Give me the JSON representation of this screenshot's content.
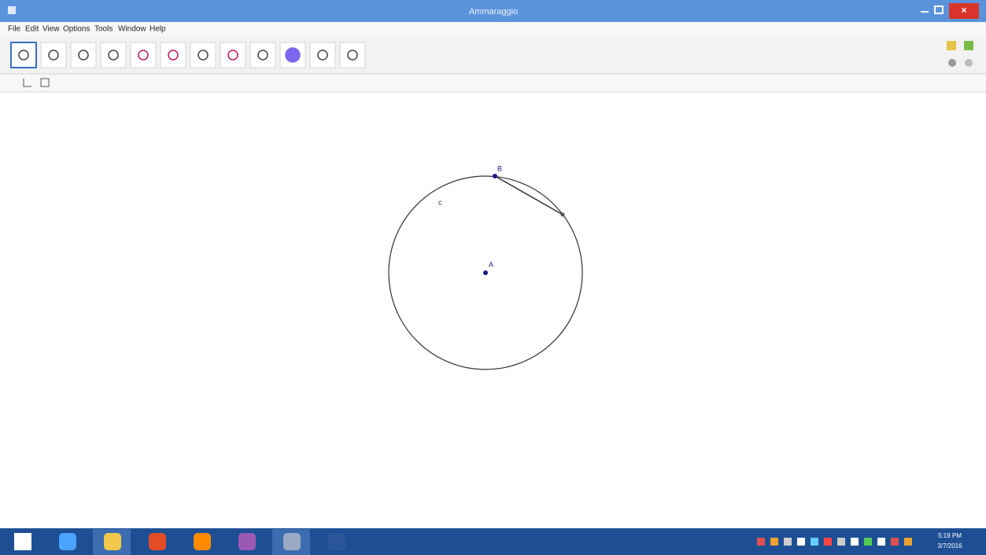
{
  "window": {
    "title": "Ammaraggio"
  },
  "menu": [
    "File",
    "Edit",
    "View",
    "Options",
    "Tools",
    "Window",
    "Help"
  ],
  "canvas": {
    "labels": {
      "circle": "c",
      "center": "A",
      "point": "B"
    }
  },
  "taskbar": {
    "time": "5:19 PM",
    "date": "3/7/2016"
  }
}
